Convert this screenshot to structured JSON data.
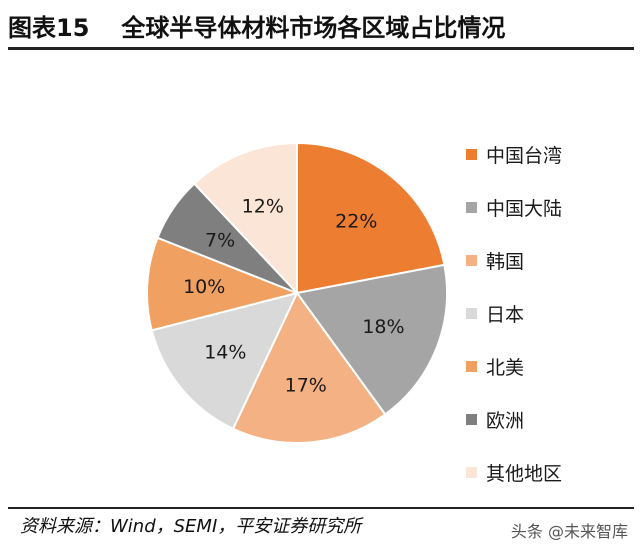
{
  "header": {
    "figure_no": "图表15",
    "title": "全球半导体材料市场各区域占比情况"
  },
  "chart_data": {
    "type": "pie",
    "title": "全球半导体材料市场各区域占比情况",
    "unit": "%",
    "categories": [
      "中国台湾",
      "中国大陆",
      "韩国",
      "日本",
      "北美",
      "欧洲",
      "其他地区"
    ],
    "values": [
      22,
      18,
      17,
      14,
      10,
      7,
      12
    ],
    "labels": [
      "22%",
      "18%",
      "17%",
      "14%",
      "10%",
      "7%",
      "12%"
    ],
    "colors": [
      "#ED7D31",
      "#A5A5A5",
      "#F4B183",
      "#D9D9D9",
      "#F0A060",
      "#7F7F7F",
      "#FBE5D6"
    ],
    "start": "12 o'clock",
    "direction": "clockwise",
    "legend_position": "right"
  },
  "footer": {
    "source": "资料来源：Wind，SEMI，平安证券研究所",
    "watermark": "头条 @未来智库"
  }
}
